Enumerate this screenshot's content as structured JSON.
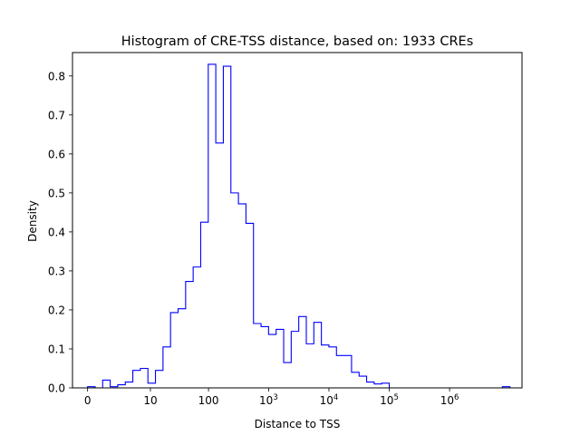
{
  "chart_data": {
    "type": "histogram-step",
    "title": "Histogram of CRE-TSS distance, based on: 1933 CREs",
    "xlabel": "Distance to TSS",
    "ylabel": "Density",
    "xscale": "log1p",
    "xlim": [
      0,
      10000000
    ],
    "ylim": [
      0,
      0.86
    ],
    "x_ticks": [
      {
        "value": 0,
        "label": "0"
      },
      {
        "value": 10,
        "label": "10"
      },
      {
        "value": 100,
        "label": "100"
      },
      {
        "value": 1000,
        "label": "10",
        "sup": "3"
      },
      {
        "value": 10000,
        "label": "10",
        "sup": "4"
      },
      {
        "value": 100000,
        "label": "10",
        "sup": "5"
      },
      {
        "value": 1000000,
        "label": "10",
        "sup": "6"
      }
    ],
    "y_ticks": [
      {
        "value": 0.0,
        "label": "0.0"
      },
      {
        "value": 0.1,
        "label": "0.1"
      },
      {
        "value": 0.2,
        "label": "0.2"
      },
      {
        "value": 0.3,
        "label": "0.3"
      },
      {
        "value": 0.4,
        "label": "0.4"
      },
      {
        "value": 0.5,
        "label": "0.5"
      },
      {
        "value": 0.6,
        "label": "0.6"
      },
      {
        "value": 0.7,
        "label": "0.7"
      },
      {
        "value": 0.8,
        "label": "0.8"
      }
    ],
    "line_color": "#0000ff",
    "bin_width_log10": 0.125,
    "densities": [
      0.003,
      0.0,
      0.02,
      0.003,
      0.008,
      0.015,
      0.045,
      0.05,
      0.012,
      0.045,
      0.105,
      0.193,
      0.203,
      0.273,
      0.31,
      0.425,
      0.83,
      0.628,
      0.825,
      0.5,
      0.472,
      0.422,
      0.165,
      0.157,
      0.137,
      0.15,
      0.065,
      0.145,
      0.183,
      0.113,
      0.168,
      0.11,
      0.105,
      0.083,
      0.083,
      0.04,
      0.03,
      0.015,
      0.01,
      0.012,
      0.0,
      0.0,
      0.0,
      0.0,
      0.0,
      0.0,
      0.0,
      0.0,
      0.0,
      0.0,
      0.0,
      0.0,
      0.0,
      0.0,
      0.0,
      0.003
    ]
  }
}
